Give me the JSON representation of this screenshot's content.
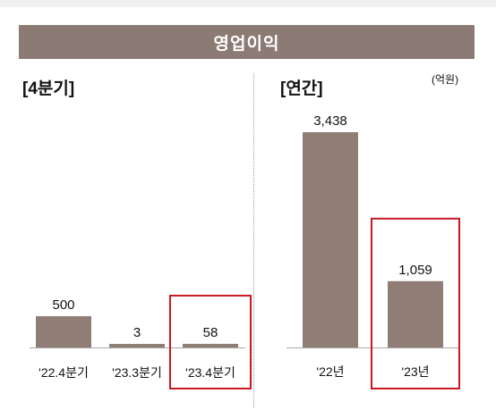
{
  "header": {
    "title": "영업이익"
  },
  "unit_label": "(억원)",
  "colors": {
    "bar": "#8f7d76",
    "header_bg": "#8c7b74",
    "highlight": "#c8191f"
  },
  "chart_data": [
    {
      "type": "bar",
      "title": "[4분기]",
      "categories": [
        "'22.4분기",
        "'23.3분기",
        "'23.4분기"
      ],
      "values": [
        500,
        3,
        58
      ],
      "value_labels": [
        "500",
        "3",
        "58"
      ],
      "highlighted_category": "'23.4분기",
      "ylim": [
        0,
        3600
      ],
      "grid": false
    },
    {
      "type": "bar",
      "title": "[연간]",
      "categories": [
        "'22년",
        "'23년"
      ],
      "values": [
        3438,
        1059
      ],
      "value_labels": [
        "3,438",
        "1,059"
      ],
      "highlighted_category": "'23년",
      "ylim": [
        0,
        3600
      ],
      "grid": false
    }
  ]
}
